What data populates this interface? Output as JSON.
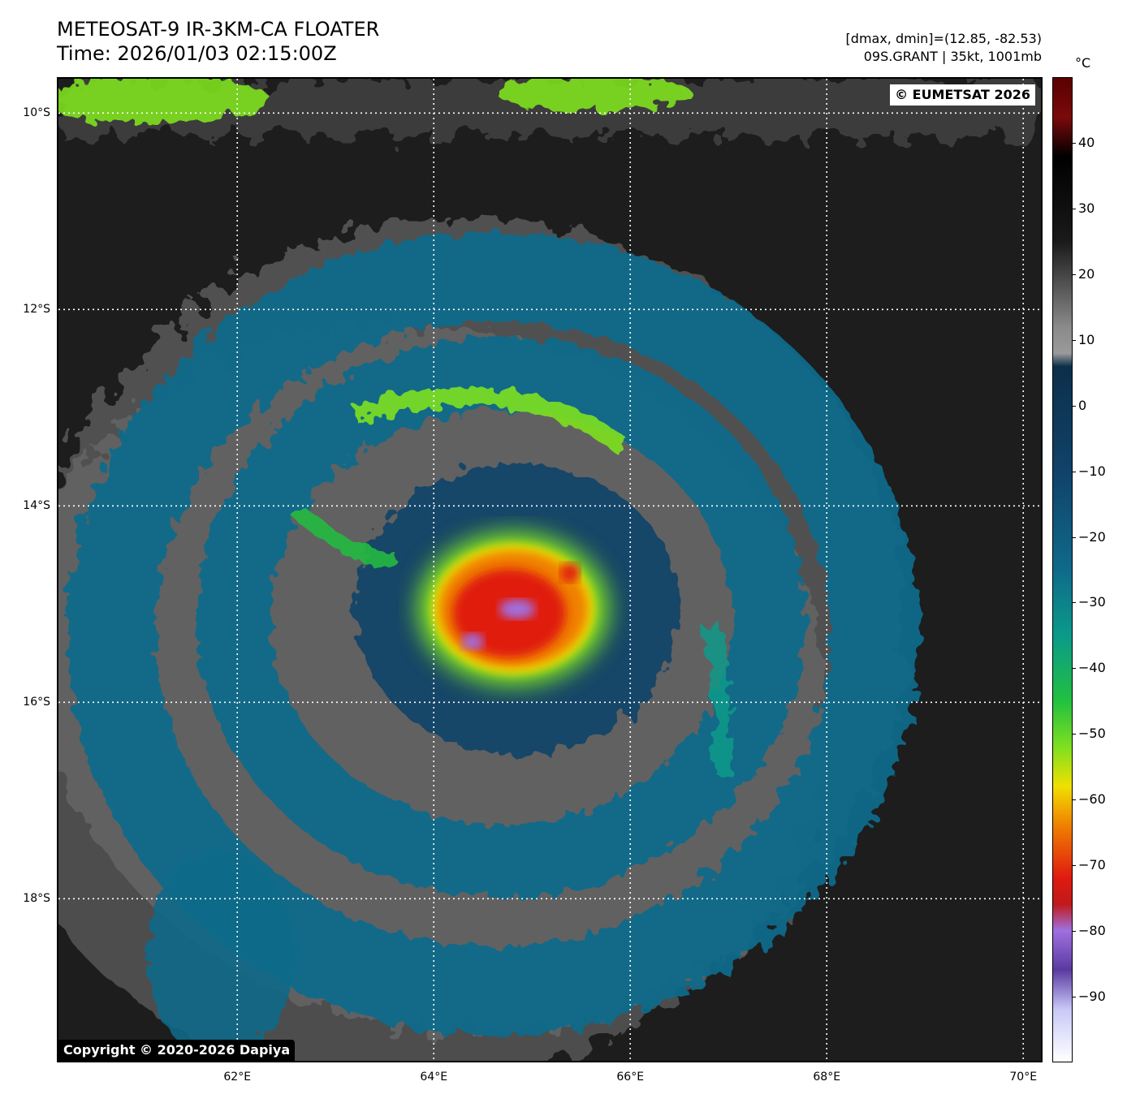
{
  "header": {
    "title": "METEOSAT-9 IR-3KM-CA FLOATER",
    "time": "Time: 2026/01/03 02:15:00Z",
    "range": "[dmax, dmin]=(12.85, -82.53)",
    "storm": "09S.GRANT | 35kt, 1001mb"
  },
  "map": {
    "extent": {
      "lon": [
        60.18,
        70.18
      ],
      "lat": [
        -9.65,
        -19.65
      ]
    },
    "lat_ticks": [
      {
        "value": -10,
        "label": "10°S"
      },
      {
        "value": -12,
        "label": "12°S"
      },
      {
        "value": -14,
        "label": "14°S"
      },
      {
        "value": -16,
        "label": "16°S"
      },
      {
        "value": -18,
        "label": "18°S"
      }
    ],
    "lon_ticks": [
      {
        "value": 62,
        "label": "62°E"
      },
      {
        "value": 64,
        "label": "64°E"
      },
      {
        "value": 66,
        "label": "66°E"
      },
      {
        "value": 68,
        "label": "68°E"
      },
      {
        "value": 70,
        "label": "70°E"
      }
    ],
    "storm_center": {
      "lon": 64.85,
      "lat": -15.05
    },
    "credit_top": "© EUMETSAT 2026",
    "credit_bottom": "Copyright © 2020-2026 Dapiya"
  },
  "colorbar": {
    "unit": "°C",
    "range": [
      -100,
      50
    ],
    "ticks": [
      {
        "value": 40,
        "label": "40"
      },
      {
        "value": 30,
        "label": "30"
      },
      {
        "value": 20,
        "label": "20"
      },
      {
        "value": 10,
        "label": "10"
      },
      {
        "value": 0,
        "label": "0"
      },
      {
        "value": -10,
        "label": "−10"
      },
      {
        "value": -20,
        "label": "−20"
      },
      {
        "value": -30,
        "label": "−30"
      },
      {
        "value": -40,
        "label": "−40"
      },
      {
        "value": -50,
        "label": "−50"
      },
      {
        "value": -60,
        "label": "−60"
      },
      {
        "value": -70,
        "label": "−70"
      },
      {
        "value": -80,
        "label": "−80"
      },
      {
        "value": -90,
        "label": "−90"
      }
    ],
    "stops": [
      {
        "value": 50,
        "color": "#5a0000"
      },
      {
        "value": 44,
        "color": "#7a0a0a"
      },
      {
        "value": 38,
        "color": "#000000"
      },
      {
        "value": 25,
        "color": "#1a1a1a"
      },
      {
        "value": 12,
        "color": "#8a8a8a"
      },
      {
        "value": 8,
        "color": "#9a9a9a"
      },
      {
        "value": 6,
        "color": "#0c2f4a"
      },
      {
        "value": -10,
        "color": "#10426a"
      },
      {
        "value": -25,
        "color": "#0f6a8a"
      },
      {
        "value": -35,
        "color": "#0a9a8a"
      },
      {
        "value": -45,
        "color": "#22c040"
      },
      {
        "value": -52,
        "color": "#7ee020"
      },
      {
        "value": -58,
        "color": "#f0e000"
      },
      {
        "value": -64,
        "color": "#f08000"
      },
      {
        "value": -72,
        "color": "#e01a10"
      },
      {
        "value": -76,
        "color": "#c01a1a"
      },
      {
        "value": -80,
        "color": "#a070e0"
      },
      {
        "value": -86,
        "color": "#5a3aa0"
      },
      {
        "value": -92,
        "color": "#c8c8f8"
      },
      {
        "value": -100,
        "color": "#ffffff"
      }
    ]
  }
}
